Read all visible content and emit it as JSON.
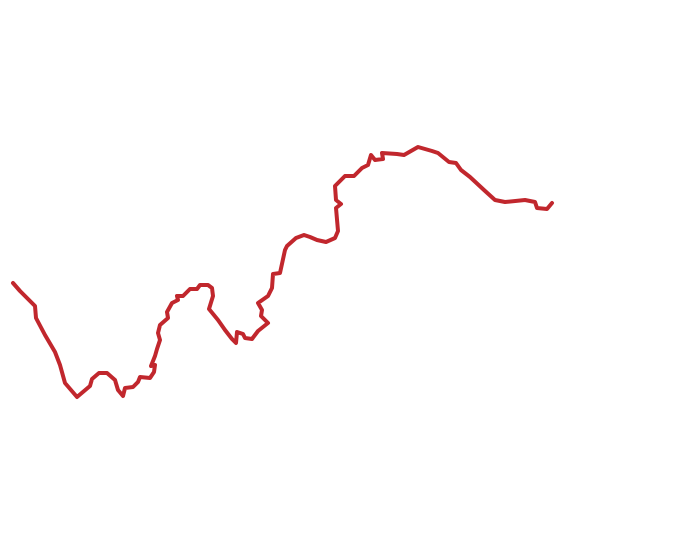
{
  "map": {
    "route": {
      "color": "#c1272d"
    }
  }
}
